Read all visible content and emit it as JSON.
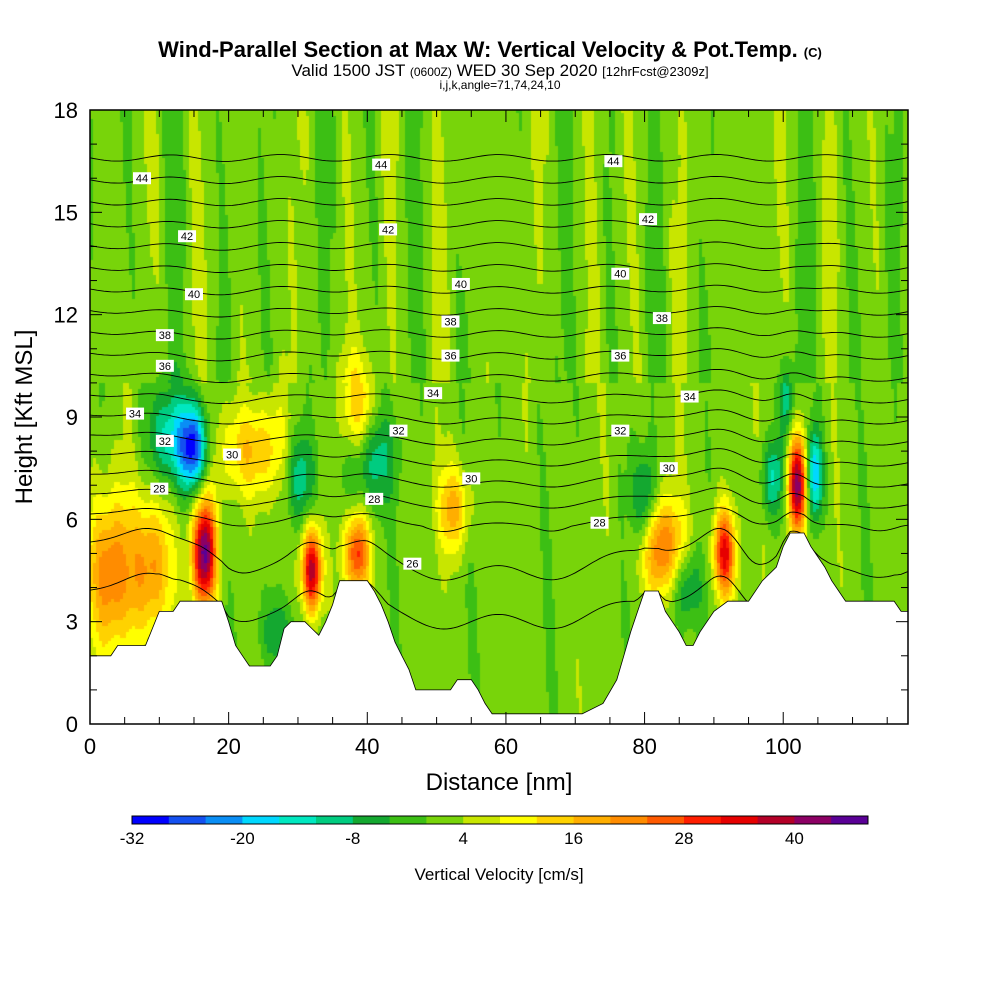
{
  "header": {
    "title_main": "Wind-Parallel Section at Max W: Vertical Velocity & Pot.Temp.",
    "title_copyright": "(C)",
    "line2_a": "Valid 1500 JST",
    "line2_b": "(0600Z)",
    "line2_c": "WED 30 Sep 2020",
    "line2_d": "[12hrFcst@2309z]",
    "line3": "i,j,k,angle=71,74,24,10"
  },
  "chart_data": {
    "type": "heatmap",
    "title": "Wind-Parallel Section at Max W: Vertical Velocity & Pot.Temp.",
    "xlabel": "Distance [nm]",
    "ylabel": "Height [Kft MSL]",
    "xlim": [
      0,
      118
    ],
    "ylim": [
      0,
      18
    ],
    "x_ticks": [
      0,
      20,
      40,
      60,
      80,
      100
    ],
    "y_ticks": [
      0,
      3,
      6,
      9,
      12,
      15,
      18
    ],
    "grid": false,
    "colorbar": {
      "label": "Vertical Velocity [cm/s]",
      "tick_labels": [
        "-32",
        "-20",
        "-8",
        "4",
        "16",
        "28",
        "40"
      ],
      "tick_values": [
        -32,
        -20,
        -8,
        4,
        16,
        28,
        40
      ],
      "colors": [
        "#0000ff",
        "#1450f0",
        "#0a8ef5",
        "#00d8ff",
        "#00e8c0",
        "#00cc80",
        "#14a830",
        "#3cbf14",
        "#78d40a",
        "#c8e600",
        "#ffff00",
        "#ffd200",
        "#ffae00",
        "#ff8c00",
        "#ff5a00",
        "#ff1e00",
        "#e60000",
        "#b40028",
        "#8c0064",
        "#5a0096"
      ]
    },
    "terrain_kft": [
      [
        0,
        2.0
      ],
      [
        3,
        2.0
      ],
      [
        4,
        2.3
      ],
      [
        8,
        2.3
      ],
      [
        9,
        2.8
      ],
      [
        10,
        3.3
      ],
      [
        12,
        3.3
      ],
      [
        13,
        3.6
      ],
      [
        19,
        3.6
      ],
      [
        20,
        3.0
      ],
      [
        21,
        2.3
      ],
      [
        22,
        2.0
      ],
      [
        23,
        1.7
      ],
      [
        26,
        1.7
      ],
      [
        27,
        2.0
      ],
      [
        28,
        2.8
      ],
      [
        29,
        3.0
      ],
      [
        31,
        3.0
      ],
      [
        32,
        2.8
      ],
      [
        33,
        2.6
      ],
      [
        34,
        3.0
      ],
      [
        35,
        3.5
      ],
      [
        36,
        4.2
      ],
      [
        40,
        4.2
      ],
      [
        41,
        3.9
      ],
      [
        42,
        3.5
      ],
      [
        43,
        3.0
      ],
      [
        44,
        2.4
      ],
      [
        45,
        2.0
      ],
      [
        46,
        1.6
      ],
      [
        47,
        1.0
      ],
      [
        52,
        1.0
      ],
      [
        53,
        1.3
      ],
      [
        55,
        1.3
      ],
      [
        56,
        1.0
      ],
      [
        57,
        0.6
      ],
      [
        58,
        0.3
      ],
      [
        71,
        0.3
      ],
      [
        74,
        0.6
      ],
      [
        76,
        1.3
      ],
      [
        77,
        2.0
      ],
      [
        78,
        2.7
      ],
      [
        79,
        3.3
      ],
      [
        80,
        3.9
      ],
      [
        82,
        3.9
      ],
      [
        83,
        3.3
      ],
      [
        84,
        3.0
      ],
      [
        85,
        2.7
      ],
      [
        86,
        2.3
      ],
      [
        87,
        2.3
      ],
      [
        88,
        2.7
      ],
      [
        90,
        3.3
      ],
      [
        92,
        3.6
      ],
      [
        95,
        3.6
      ],
      [
        97,
        4.2
      ],
      [
        99,
        4.6
      ],
      [
        100,
        5.2
      ],
      [
        101,
        5.6
      ],
      [
        103,
        5.6
      ],
      [
        104,
        5.2
      ],
      [
        105,
        4.9
      ],
      [
        106,
        4.6
      ],
      [
        107,
        4.2
      ],
      [
        108,
        3.9
      ],
      [
        109,
        3.6
      ],
      [
        110,
        3.6
      ],
      [
        111,
        3.6
      ],
      [
        116,
        3.6
      ],
      [
        117,
        3.3
      ],
      [
        118,
        3.3
      ]
    ],
    "w_features": [
      {
        "x": 16.5,
        "z": 5.0,
        "w": 48,
        "sx": 1.2,
        "sz": 1.1
      },
      {
        "x": 32.0,
        "z": 4.5,
        "w": 44,
        "sx": 1.0,
        "sz": 0.9
      },
      {
        "x": 102.0,
        "z": 7.0,
        "w": 46,
        "sx": 1.0,
        "sz": 1.0
      },
      {
        "x": 91.5,
        "z": 5.0,
        "w": 36,
        "sx": 1.1,
        "sz": 0.9
      },
      {
        "x": 38.5,
        "z": 5.0,
        "w": 30,
        "sx": 1.3,
        "sz": 0.8
      },
      {
        "x": 52.5,
        "z": 6.3,
        "w": 18,
        "sx": 1.6,
        "sz": 0.9
      },
      {
        "x": 23.5,
        "z": 8.0,
        "w": 16,
        "sx": 4.0,
        "sz": 1.0
      },
      {
        "x": 38.5,
        "z": 9.0,
        "w": 18,
        "sx": 1.8,
        "sz": 1.2
      },
      {
        "x": 82.5,
        "z": 5.2,
        "w": 26,
        "sx": 2.2,
        "sz": 1.0
      },
      {
        "x": 3.0,
        "z": 4.4,
        "w": 24,
        "sx": 2.5,
        "sz": 1.6
      },
      {
        "x": 9.0,
        "z": 4.6,
        "w": 22,
        "sx": 2.0,
        "sz": 1.5
      },
      {
        "x": 15.0,
        "z": 8.1,
        "w": -34,
        "sx": 1.5,
        "sz": 0.9
      },
      {
        "x": 11.5,
        "z": 8.4,
        "w": -18,
        "sx": 2.0,
        "sz": 1.0
      },
      {
        "x": 30.0,
        "z": 7.3,
        "w": -16,
        "sx": 1.6,
        "sz": 1.0
      },
      {
        "x": 40.0,
        "z": 7.8,
        "w": -18,
        "sx": 2.5,
        "sz": 1.0
      },
      {
        "x": 104.5,
        "z": 7.3,
        "w": -26,
        "sx": 0.8,
        "sz": 0.9
      },
      {
        "x": 98.5,
        "z": 7.2,
        "w": -16,
        "sx": 1.2,
        "sz": 0.8
      },
      {
        "x": 80.0,
        "z": 6.5,
        "w": -16,
        "sx": 1.2,
        "sz": 1.0
      },
      {
        "x": 86.0,
        "z": 4.0,
        "w": -14,
        "sx": 1.5,
        "sz": 0.8
      },
      {
        "x": 27.0,
        "z": 2.7,
        "w": -10,
        "sx": 2.0,
        "sz": 0.8
      },
      {
        "x": 100.5,
        "z": 9.5,
        "w": -12,
        "sx": 0.8,
        "sz": 0.8
      }
    ],
    "contour_labels": [
      {
        "text": "44",
        "x": 7.5,
        "z": 16.0
      },
      {
        "text": "44",
        "x": 42.0,
        "z": 16.4
      },
      {
        "text": "44",
        "x": 75.5,
        "z": 16.5
      },
      {
        "text": "42",
        "x": 14.0,
        "z": 14.3
      },
      {
        "text": "42",
        "x": 43.0,
        "z": 14.5
      },
      {
        "text": "42",
        "x": 80.5,
        "z": 14.8
      },
      {
        "text": "40",
        "x": 15.0,
        "z": 12.6
      },
      {
        "text": "40",
        "x": 53.5,
        "z": 12.9
      },
      {
        "text": "40",
        "x": 76.5,
        "z": 13.2
      },
      {
        "text": "38",
        "x": 10.8,
        "z": 11.4
      },
      {
        "text": "38",
        "x": 52.0,
        "z": 11.8
      },
      {
        "text": "38",
        "x": 82.5,
        "z": 11.9
      },
      {
        "text": "36",
        "x": 10.8,
        "z": 10.5
      },
      {
        "text": "36",
        "x": 52.0,
        "z": 10.8
      },
      {
        "text": "36",
        "x": 76.5,
        "z": 10.8
      },
      {
        "text": "34",
        "x": 6.5,
        "z": 9.1
      },
      {
        "text": "34",
        "x": 49.5,
        "z": 9.7
      },
      {
        "text": "34",
        "x": 86.5,
        "z": 9.6
      },
      {
        "text": "32",
        "x": 10.8,
        "z": 8.3
      },
      {
        "text": "32",
        "x": 44.5,
        "z": 8.6
      },
      {
        "text": "32",
        "x": 76.5,
        "z": 8.6
      },
      {
        "text": "30",
        "x": 20.5,
        "z": 7.9
      },
      {
        "text": "30",
        "x": 55.0,
        "z": 7.2
      },
      {
        "text": "30",
        "x": 83.5,
        "z": 7.5
      },
      {
        "text": "28",
        "x": 10.0,
        "z": 6.9
      },
      {
        "text": "28",
        "x": 41.0,
        "z": 6.6
      },
      {
        "text": "28",
        "x": 73.5,
        "z": 5.9
      },
      {
        "text": "26",
        "x": 46.5,
        "z": 4.7
      }
    ]
  },
  "colors": {
    "background_field": "#3cbf14",
    "terrain": "#ffffff",
    "contour": "#000000"
  }
}
